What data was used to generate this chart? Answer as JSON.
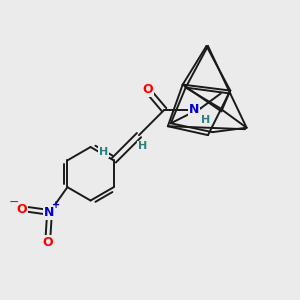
{
  "bg_color": "#ebebeb",
  "bond_color": "#1a1a1a",
  "bond_width": 1.4,
  "atom_colors": {
    "O": "#ff0000",
    "N_amide": "#0000cc",
    "N_nitro": "#0000cc",
    "H": "#2d8080"
  },
  "figsize": [
    3.0,
    3.0
  ],
  "dpi": 100
}
